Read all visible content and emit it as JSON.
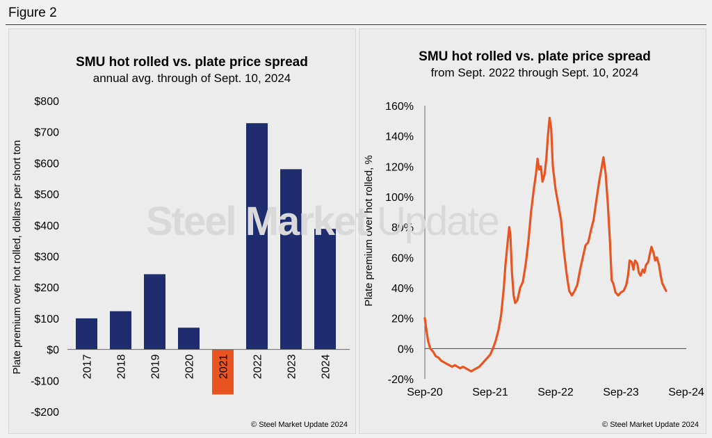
{
  "figure_label": "Figure 2",
  "watermark": {
    "bold": "Steel Market",
    "light": "Update"
  },
  "colors": {
    "bar": "#1f2d6e",
    "highlight": "#ea5421",
    "line": "#ea5421"
  },
  "chart_data": [
    {
      "type": "bar",
      "title": "SMU hot rolled vs. plate price spread",
      "subtitle": "annual avg. through of Sept. 10, 2024",
      "ylabel": "Plate premium over hot rolled, dollars per short ton",
      "ylim": [
        -200,
        800
      ],
      "yticks": [
        800,
        700,
        600,
        500,
        400,
        300,
        200,
        100,
        0,
        -100,
        -200
      ],
      "ytick_labels": [
        "$800",
        "$700",
        "$600",
        "$500",
        "$400",
        "$300",
        "$200",
        "$100",
        "$0",
        "-$100",
        "-$200"
      ],
      "categories": [
        "2017",
        "2018",
        "2019",
        "2020",
        "2021",
        "2022",
        "2023",
        "2024"
      ],
      "values": [
        100,
        123,
        242,
        70,
        -145,
        728,
        580,
        388
      ],
      "highlight_index": 4,
      "copyright": "© Steel Market Update 2024"
    },
    {
      "type": "line",
      "title": "SMU hot rolled vs. plate price spread",
      "subtitle": "from Sept. 2022 through Sept. 10, 2024",
      "ylabel": "Plate premium over hot rolled, %",
      "ylim": [
        -20,
        160
      ],
      "yticks": [
        160,
        140,
        120,
        100,
        80,
        60,
        40,
        20,
        0,
        -20
      ],
      "ytick_labels": [
        "160%",
        "140%",
        "120%",
        "100%",
        "80%",
        "60%",
        "40%",
        "20%",
        "0%",
        "-20%"
      ],
      "xticks": [
        "Sep-20",
        "Sep-21",
        "Sep-22",
        "Sep-23",
        "Sep-24"
      ],
      "xlim_months": [
        0,
        48
      ],
      "series": [
        {
          "points": [
            [
              0,
              20
            ],
            [
              0.3,
              12
            ],
            [
              0.6,
              5
            ],
            [
              1,
              0
            ],
            [
              1.5,
              -2
            ],
            [
              2,
              -5
            ],
            [
              2.5,
              -6
            ],
            [
              3,
              -8
            ],
            [
              3.5,
              -9
            ],
            [
              4,
              -10
            ],
            [
              4.5,
              -11
            ],
            [
              5,
              -12
            ],
            [
              5.5,
              -11
            ],
            [
              6,
              -12
            ],
            [
              6.5,
              -13
            ],
            [
              7,
              -12
            ],
            [
              7.5,
              -13
            ],
            [
              8,
              -14
            ],
            [
              8.5,
              -15
            ],
            [
              9,
              -14
            ],
            [
              9.5,
              -13
            ],
            [
              10,
              -12
            ],
            [
              10.5,
              -10
            ],
            [
              11,
              -8
            ],
            [
              11.5,
              -6
            ],
            [
              12,
              -4
            ],
            [
              12.5,
              0
            ],
            [
              13,
              5
            ],
            [
              13.5,
              12
            ],
            [
              14,
              22
            ],
            [
              14.5,
              40
            ],
            [
              14.8,
              55
            ],
            [
              15.2,
              70
            ],
            [
              15.5,
              80
            ],
            [
              15.7,
              75
            ],
            [
              16,
              50
            ],
            [
              16.3,
              35
            ],
            [
              16.6,
              30
            ],
            [
              17,
              32
            ],
            [
              17.5,
              40
            ],
            [
              18,
              44
            ],
            [
              18.5,
              55
            ],
            [
              19,
              70
            ],
            [
              19.5,
              90
            ],
            [
              20,
              105
            ],
            [
              20.4,
              115
            ],
            [
              20.7,
              125
            ],
            [
              21,
              118
            ],
            [
              21.3,
              120
            ],
            [
              21.6,
              110
            ],
            [
              22,
              115
            ],
            [
              22.3,
              125
            ],
            [
              22.6,
              140
            ],
            [
              22.9,
              152
            ],
            [
              23.2,
              145
            ],
            [
              23.5,
              120
            ],
            [
              24,
              105
            ],
            [
              24.5,
              95
            ],
            [
              25,
              85
            ],
            [
              25.5,
              65
            ],
            [
              26,
              50
            ],
            [
              26.5,
              38
            ],
            [
              27,
              35
            ],
            [
              27.5,
              38
            ],
            [
              28,
              42
            ],
            [
              28.5,
              52
            ],
            [
              29,
              60
            ],
            [
              29.5,
              68
            ],
            [
              30,
              70
            ],
            [
              30.5,
              78
            ],
            [
              31,
              85
            ],
            [
              31.5,
              98
            ],
            [
              32,
              110
            ],
            [
              32.5,
              120
            ],
            [
              32.8,
              126
            ],
            [
              33.2,
              115
            ],
            [
              33.6,
              95
            ],
            [
              34,
              70
            ],
            [
              34.3,
              45
            ],
            [
              34.6,
              43
            ],
            [
              35,
              37
            ],
            [
              35.5,
              35
            ],
            [
              36,
              37
            ],
            [
              36.5,
              38
            ],
            [
              37,
              42
            ],
            [
              37.3,
              48
            ],
            [
              37.6,
              58
            ],
            [
              38,
              57
            ],
            [
              38.3,
              52
            ],
            [
              38.6,
              58
            ],
            [
              39,
              56
            ],
            [
              39.3,
              50
            ],
            [
              39.6,
              48
            ],
            [
              40,
              52
            ],
            [
              40.3,
              50
            ],
            [
              40.6,
              55
            ],
            [
              41,
              57
            ],
            [
              41.3,
              62
            ],
            [
              41.6,
              67
            ],
            [
              42,
              63
            ],
            [
              42.3,
              58
            ],
            [
              42.6,
              60
            ],
            [
              43,
              55
            ],
            [
              43.3,
              48
            ],
            [
              43.6,
              43
            ],
            [
              44,
              40
            ],
            [
              44.3,
              38
            ]
          ]
        }
      ],
      "copyright": "© Steel Market Update 2024"
    }
  ]
}
